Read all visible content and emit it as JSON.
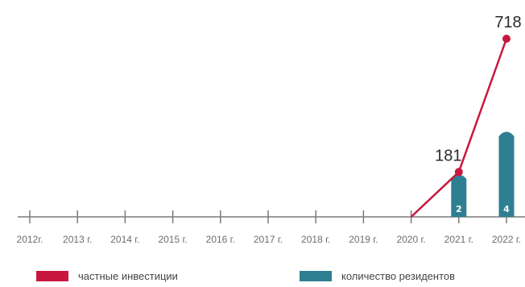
{
  "chart_data": {
    "type": "line",
    "categories": [
      "2012г.",
      "2013 г.",
      "2014 г.",
      "2015 г.",
      "2016 г.",
      "2017 г.",
      "2018 г.",
      "2019 г.",
      "2020 г.",
      "2021 г.",
      "2022 г."
    ],
    "series": [
      {
        "name": "частные инвестиции",
        "type": "line",
        "color": "#c8173f",
        "values": [
          null,
          null,
          null,
          null,
          null,
          null,
          null,
          null,
          0,
          181,
          718
        ],
        "labels": [
          "",
          "",
          "",
          "",
          "",
          "",
          "",
          "",
          "",
          "181",
          "718"
        ]
      },
      {
        "name": "количество резидентов",
        "type": "bar",
        "color": "#2f7f92",
        "values": [
          null,
          null,
          null,
          null,
          null,
          null,
          null,
          null,
          null,
          2,
          4
        ],
        "labels": [
          "",
          "",
          "",
          "",
          "",
          "",
          "",
          "",
          "",
          "2",
          "4"
        ]
      }
    ],
    "legend_position": "bottom",
    "grid": false
  }
}
